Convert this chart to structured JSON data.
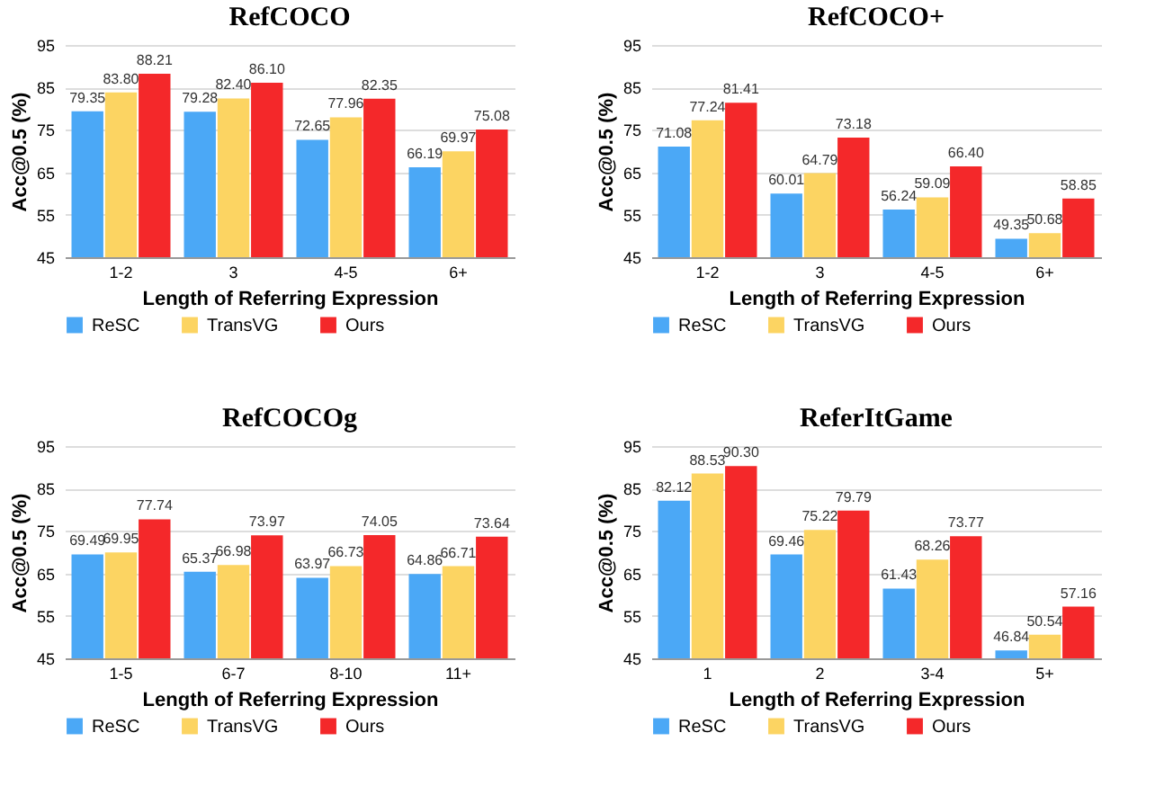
{
  "chart_data": [
    {
      "type": "bar",
      "title": "RefCOCO",
      "xlabel": "Length of Referring Expression",
      "ylabel": "Acc@0.5 (%)",
      "categories": [
        "1-2",
        "3",
        "4-5",
        "6+"
      ],
      "ylim": [
        45,
        95
      ],
      "yticks": [
        45,
        55,
        65,
        75,
        85,
        95
      ],
      "grid": "y",
      "legend": "bottom",
      "series": [
        {
          "name": "ReSC",
          "color": "#4ba8f6",
          "values": [
            79.35,
            79.28,
            72.65,
            66.19
          ],
          "value_labels": [
            "79.35",
            "79.28",
            "72.65",
            "66.19"
          ]
        },
        {
          "name": "TransVG",
          "color": "#fcd462",
          "values": [
            83.8,
            82.4,
            77.96,
            69.97
          ],
          "value_labels": [
            "83.80",
            "82.40",
            "77.96",
            "69.97"
          ]
        },
        {
          "name": "Ours",
          "color": "#f4282a",
          "values": [
            88.21,
            86.1,
            82.35,
            75.08
          ],
          "value_labels": [
            "88.21",
            "86.10",
            "82.35",
            "75.08"
          ]
        }
      ]
    },
    {
      "type": "bar",
      "title": "RefCOCO+",
      "xlabel": "Length of Referring Expression",
      "ylabel": "Acc@0.5 (%)",
      "categories": [
        "1-2",
        "3",
        "4-5",
        "6+"
      ],
      "ylim": [
        45,
        95
      ],
      "yticks": [
        45,
        55,
        65,
        75,
        85,
        95
      ],
      "grid": "y",
      "legend": "bottom",
      "series": [
        {
          "name": "ReSC",
          "color": "#4ba8f6",
          "values": [
            71.08,
            60.01,
            56.24,
            49.35
          ],
          "value_labels": [
            "71.08",
            "60.01",
            "56.24",
            "49.35"
          ]
        },
        {
          "name": "TransVG",
          "color": "#fcd462",
          "values": [
            77.24,
            64.79,
            59.09,
            50.68
          ],
          "value_labels": [
            "77.24",
            "64.79",
            "59.09",
            "50.68"
          ]
        },
        {
          "name": "Ours",
          "color": "#f4282a",
          "values": [
            81.41,
            73.18,
            66.4,
            58.85
          ],
          "value_labels": [
            "81.41",
            "73.18",
            "66.40",
            "58.85"
          ]
        }
      ]
    },
    {
      "type": "bar",
      "title": "RefCOCOg",
      "xlabel": "Length of Referring Expression",
      "ylabel": "Acc@0.5 (%)",
      "categories": [
        "1-5",
        "6-7",
        "8-10",
        "11+"
      ],
      "ylim": [
        45,
        95
      ],
      "yticks": [
        45,
        55,
        65,
        75,
        85,
        95
      ],
      "grid": "y",
      "legend": "bottom",
      "series": [
        {
          "name": "ReSC",
          "color": "#4ba8f6",
          "values": [
            69.49,
            65.37,
            63.97,
            64.86
          ],
          "value_labels": [
            "69.49",
            "65.37",
            "63.97",
            "64.86"
          ]
        },
        {
          "name": "TransVG",
          "color": "#fcd462",
          "values": [
            69.95,
            66.98,
            66.73,
            66.71
          ],
          "value_labels": [
            "69.95",
            "66.98",
            "66.73",
            "66.71"
          ]
        },
        {
          "name": "Ours",
          "color": "#f4282a",
          "values": [
            77.74,
            73.97,
            74.05,
            73.64
          ],
          "value_labels": [
            "77.74",
            "73.97",
            "74.05",
            "73.64"
          ]
        }
      ]
    },
    {
      "type": "bar",
      "title": "ReferItGame",
      "xlabel": "Length of Referring Expression",
      "ylabel": "Acc@0.5 (%)",
      "categories": [
        "1",
        "2",
        "3-4",
        "5+"
      ],
      "ylim": [
        45,
        95
      ],
      "yticks": [
        45,
        55,
        65,
        75,
        85,
        95
      ],
      "grid": "y",
      "legend": "bottom",
      "series": [
        {
          "name": "ReSC",
          "color": "#4ba8f6",
          "values": [
            82.12,
            69.46,
            61.43,
            46.84
          ],
          "value_labels": [
            "82.12",
            "69.46",
            "61.43",
            "46.84"
          ]
        },
        {
          "name": "TransVG",
          "color": "#fcd462",
          "values": [
            88.53,
            75.22,
            68.26,
            50.54
          ],
          "value_labels": [
            "88.53",
            "75.22",
            "68.26",
            "50.54"
          ]
        },
        {
          "name": "Ours",
          "color": "#f4282a",
          "values": [
            90.3,
            79.79,
            73.77,
            57.16
          ],
          "value_labels": [
            "90.30",
            "79.79",
            "73.77",
            "57.16"
          ]
        }
      ]
    }
  ]
}
